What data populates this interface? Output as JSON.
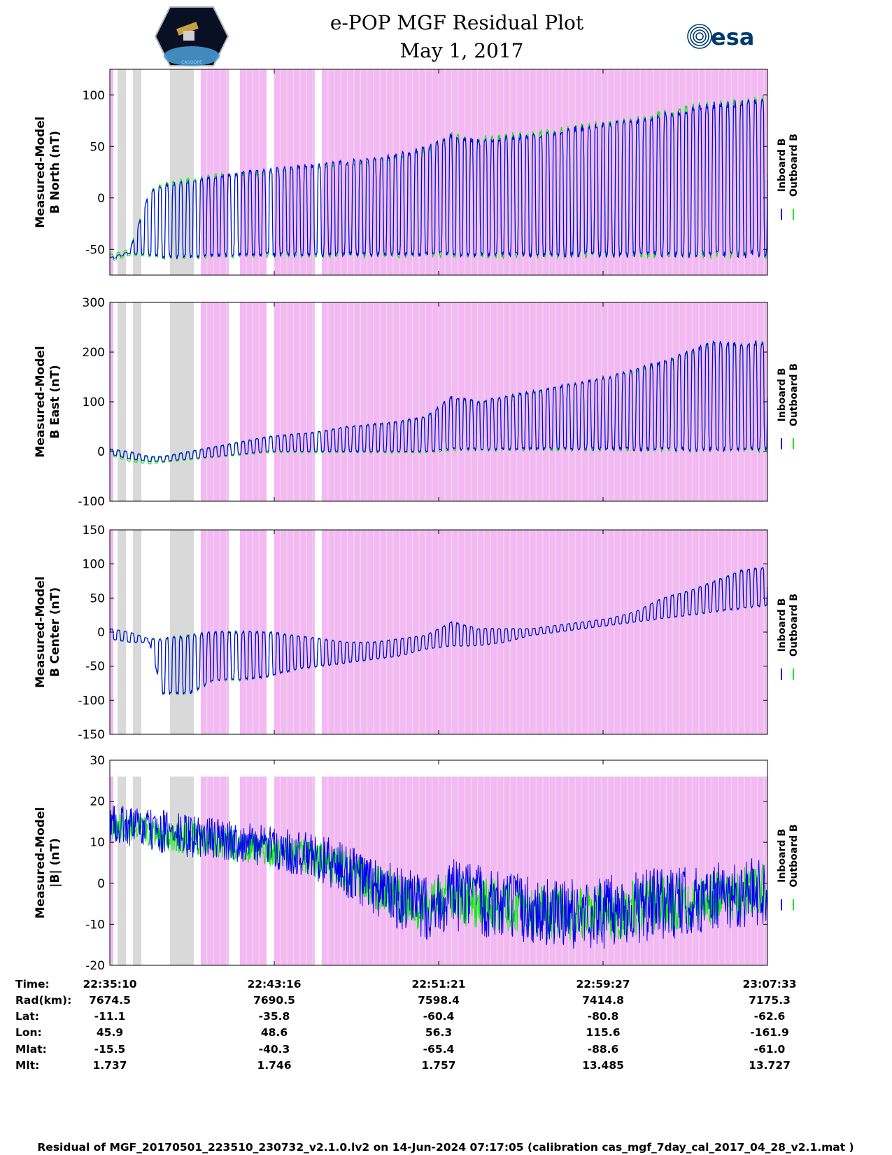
{
  "header": {
    "title": "e-POP MGF Residual Plot",
    "date": "May 1, 2017",
    "left_logo_label": "CASSIOPE",
    "right_logo_label": "esa"
  },
  "colors": {
    "inboard": "#0000ee",
    "outboard": "#00ee00",
    "shade_pink": "#f5b8f5",
    "shade_gray": "#d9d9d9",
    "frame": "#000000"
  },
  "chart_data": [
    {
      "type": "line",
      "ylabel_line1": "Measured-Model",
      "ylabel_line2": "B North (nT)",
      "ylim": [
        -75,
        125
      ],
      "yticks": [
        -50,
        0,
        50,
        100
      ],
      "ytick_labels": [
        "-50",
        "0",
        "50",
        "100"
      ],
      "legend": [
        "Inboard B",
        "Outboard B"
      ],
      "series": [
        {
          "name": "Inboard B",
          "x": [
            0,
            3,
            6,
            8,
            12,
            16,
            20,
            24,
            28,
            32,
            36,
            40,
            44,
            48,
            52,
            56,
            60,
            64,
            68,
            72,
            76,
            80,
            84,
            88,
            92,
            96,
            100
          ],
          "peak": [
            -58,
            -52,
            5,
            12,
            16,
            20,
            25,
            27,
            30,
            32,
            35,
            38,
            42,
            48,
            60,
            55,
            58,
            60,
            64,
            68,
            72,
            74,
            80,
            85,
            90,
            92,
            95
          ],
          "trough": [
            -60,
            -54,
            -55,
            -57,
            -57,
            -56,
            -55,
            -55,
            -55,
            -55,
            -55,
            -55,
            -55,
            -55,
            -55,
            -55,
            -55,
            -55,
            -55,
            -55,
            -55,
            -55,
            -55,
            -55,
            -55,
            -55,
            -55
          ]
        },
        {
          "name": "Outboard B",
          "x": [
            0,
            3,
            6,
            8,
            12,
            16,
            20,
            24,
            28,
            32,
            36,
            40,
            44,
            48,
            52,
            56,
            60,
            64,
            68,
            72,
            76,
            80,
            84,
            88,
            92,
            96,
            100
          ],
          "peak": [
            -55,
            -50,
            6,
            14,
            18,
            22,
            23,
            25,
            28,
            30,
            33,
            36,
            40,
            46,
            62,
            57,
            60,
            62,
            66,
            70,
            74,
            76,
            82,
            87,
            92,
            94,
            97
          ],
          "trough": [
            -62,
            -56,
            -56,
            -58,
            -58,
            -57,
            -56,
            -56,
            -56,
            -56,
            -56,
            -56,
            -56,
            -56,
            -56,
            -56,
            -56,
            -56,
            -56,
            -56,
            -56,
            -56,
            -56,
            -56,
            -56,
            -56,
            -56
          ]
        }
      ]
    },
    {
      "type": "line",
      "ylabel_line1": "Measured-Model",
      "ylabel_line2": "B East (nT)",
      "ylim": [
        -100,
        300
      ],
      "yticks": [
        -100,
        0,
        100,
        200,
        300
      ],
      "ytick_labels": [
        "-100",
        "0",
        "100",
        "200",
        "300"
      ],
      "legend": [
        "Inboard B",
        "Outboard B"
      ],
      "series": [
        {
          "name": "Inboard B",
          "x": [
            0,
            3,
            6,
            8,
            12,
            16,
            20,
            24,
            28,
            32,
            36,
            40,
            44,
            48,
            52,
            56,
            60,
            64,
            68,
            72,
            76,
            80,
            84,
            88,
            92,
            96,
            100
          ],
          "peak": [
            5,
            0,
            -10,
            -10,
            0,
            10,
            20,
            30,
            35,
            40,
            50,
            55,
            60,
            70,
            110,
            100,
            110,
            120,
            130,
            140,
            150,
            165,
            180,
            200,
            220,
            215,
            220
          ],
          "trough": [
            -5,
            -15,
            -20,
            -20,
            -15,
            -10,
            -5,
            0,
            0,
            0,
            0,
            0,
            0,
            0,
            5,
            5,
            5,
            5,
            5,
            5,
            5,
            5,
            5,
            5,
            5,
            5,
            5
          ]
        },
        {
          "name": "Outboard B",
          "x": [
            0,
            3,
            6,
            8,
            12,
            16,
            20,
            24,
            28,
            32,
            36,
            40,
            44,
            48,
            52,
            56,
            60,
            64,
            68,
            72,
            76,
            80,
            84,
            88,
            92,
            96,
            100
          ],
          "peak": [
            3,
            -2,
            -12,
            -12,
            -2,
            8,
            18,
            28,
            33,
            38,
            48,
            53,
            58,
            68,
            108,
            98,
            108,
            118,
            128,
            138,
            148,
            163,
            178,
            198,
            218,
            213,
            218
          ],
          "trough": [
            -8,
            -20,
            -25,
            -22,
            -17,
            -12,
            -7,
            -2,
            -2,
            -2,
            -2,
            -2,
            -2,
            -2,
            3,
            3,
            3,
            3,
            3,
            3,
            3,
            3,
            3,
            3,
            3,
            3,
            3
          ]
        }
      ]
    },
    {
      "type": "line",
      "ylabel_line1": "Measured-Model",
      "ylabel_line2": "B Center (nT)",
      "ylim": [
        -150,
        150
      ],
      "yticks": [
        -150,
        -100,
        -50,
        0,
        50,
        100,
        150
      ],
      "ytick_labels": [
        "-150",
        "-100",
        "-50",
        "0",
        "50",
        "100",
        "150"
      ],
      "legend": [
        "Inboard B",
        "Outboard B"
      ],
      "series": [
        {
          "name": "Inboard B",
          "x": [
            0,
            3,
            6,
            8,
            12,
            16,
            20,
            24,
            28,
            32,
            36,
            40,
            44,
            48,
            52,
            56,
            60,
            64,
            68,
            72,
            76,
            80,
            84,
            88,
            92,
            96,
            100
          ],
          "peak": [
            5,
            0,
            -10,
            -10,
            -5,
            0,
            0,
            0,
            -5,
            -10,
            -15,
            -15,
            -10,
            -5,
            15,
            5,
            5,
            5,
            10,
            15,
            20,
            30,
            50,
            60,
            75,
            90,
            95
          ],
          "trough": [
            -10,
            -15,
            -15,
            -90,
            -90,
            -70,
            -70,
            -65,
            -55,
            -50,
            -45,
            -40,
            -35,
            -25,
            -20,
            -20,
            -15,
            -5,
            0,
            5,
            10,
            15,
            20,
            25,
            30,
            35,
            40
          ]
        },
        {
          "name": "Outboard B",
          "x": [
            0,
            3,
            6,
            8,
            12,
            16,
            20,
            24,
            28,
            32,
            36,
            40,
            44,
            48,
            52,
            56,
            60,
            64,
            68,
            72,
            76,
            80,
            84,
            88,
            92,
            96,
            100
          ],
          "peak": [
            5,
            0,
            -10,
            -10,
            -5,
            0,
            0,
            0,
            -5,
            -10,
            -15,
            -15,
            -10,
            -5,
            15,
            5,
            5,
            5,
            10,
            15,
            20,
            30,
            50,
            60,
            75,
            90,
            95
          ],
          "trough": [
            -10,
            -15,
            -15,
            -90,
            -90,
            -70,
            -70,
            -65,
            -55,
            -50,
            -45,
            -40,
            -35,
            -25,
            -20,
            -20,
            -15,
            -5,
            0,
            5,
            10,
            15,
            20,
            25,
            30,
            35,
            40
          ]
        }
      ]
    },
    {
      "type": "line",
      "ylabel_line1": "Measured-Model",
      "ylabel_line2": "|B| (nT)",
      "ylim": [
        -20,
        30
      ],
      "yticks": [
        -20,
        -10,
        0,
        10,
        20,
        30
      ],
      "ytick_labels": [
        "-20",
        "-10",
        "0",
        "10",
        "20",
        "30"
      ],
      "legend": [
        "Inboard B",
        "Outboard B"
      ],
      "series": [
        {
          "name": "Inboard B",
          "x": [
            0,
            3,
            6,
            8,
            12,
            16,
            20,
            24,
            28,
            32,
            36,
            40,
            44,
            48,
            52,
            56,
            60,
            64,
            68,
            72,
            76,
            80,
            84,
            88,
            92,
            96,
            100
          ],
          "peak": [
            19,
            19,
            18,
            18,
            17,
            16,
            15,
            14,
            13,
            12,
            10,
            7,
            4,
            2,
            6,
            5,
            3,
            2,
            1,
            1,
            2,
            3,
            4,
            4,
            5,
            6,
            7
          ],
          "trough": [
            10,
            9,
            8,
            7,
            6,
            6,
            5,
            4,
            2,
            0,
            -4,
            -8,
            -12,
            -14,
            -12,
            -13,
            -14,
            -15,
            -16,
            -16,
            -16,
            -15,
            -14,
            -13,
            -12,
            -11,
            -10
          ]
        },
        {
          "name": "Outboard B",
          "x": [
            0,
            3,
            6,
            8,
            12,
            16,
            20,
            24,
            28,
            32,
            36,
            40,
            44,
            48,
            52,
            56,
            60,
            64,
            68,
            72,
            76,
            80,
            84,
            88,
            92,
            96,
            100
          ],
          "peak": [
            17,
            17,
            16,
            16,
            15,
            14,
            13,
            12,
            11,
            10,
            8,
            5,
            2,
            0,
            3,
            2,
            1,
            0,
            -1,
            -1,
            0,
            1,
            2,
            2,
            3,
            4,
            5
          ],
          "trough": [
            11,
            10,
            9,
            8,
            7,
            6,
            5,
            4,
            3,
            1,
            -2,
            -6,
            -10,
            -12,
            -10,
            -11,
            -12,
            -13,
            -14,
            -14,
            -14,
            -13,
            -12,
            -11,
            -10,
            -9,
            -8
          ]
        }
      ]
    }
  ],
  "x_axis": {
    "ticks_fraction": [
      0.0,
      0.25,
      0.5,
      0.75,
      1.0
    ],
    "row_labels": [
      "Time:",
      "Rad(km):",
      "Lat:",
      "Lon:",
      "Mlat:",
      "Mlt:"
    ],
    "rows": [
      [
        "22:35:10",
        "22:43:16",
        "22:51:21",
        "22:59:27",
        "23:07:33"
      ],
      [
        "7674.5",
        "7690.5",
        "7598.4",
        "7414.8",
        "7175.3"
      ],
      [
        "-11.1",
        "-35.8",
        "-60.4",
        "-80.8",
        "-62.6"
      ],
      [
        "45.9",
        "48.6",
        "56.3",
        "115.6",
        "-161.9"
      ],
      [
        "-15.5",
        "-40.3",
        "-65.4",
        "-88.6",
        "-61.0"
      ],
      [
        "1.737",
        "1.746",
        "1.757",
        "13.485",
        "13.727"
      ]
    ]
  },
  "footer": "Residual of MGF_20170501_223510_230732_v2.1.0.lv2 on 14-Jun-2024 07:17:05 (calibration cas_mgf_7day_cal_2017_04_28_v2.1.mat )"
}
